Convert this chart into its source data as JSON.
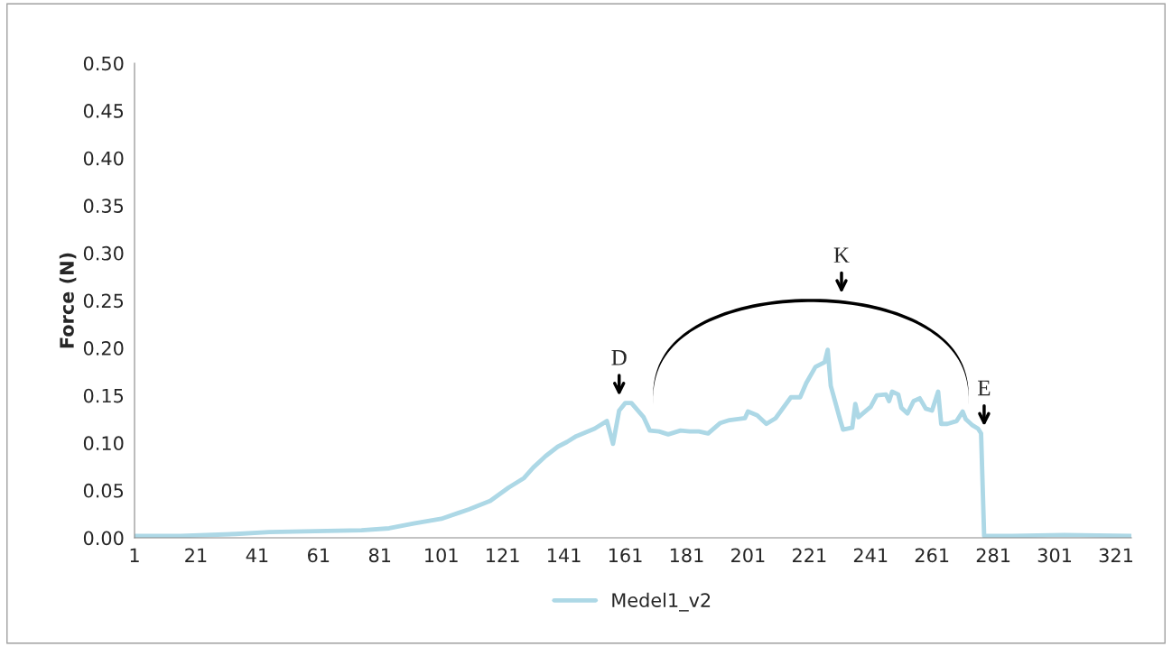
{
  "chart_data": {
    "type": "line",
    "ylabel": "Force (N)",
    "xlim": [
      1,
      326
    ],
    "xticks": [
      1,
      21,
      41,
      61,
      81,
      101,
      121,
      141,
      161,
      181,
      201,
      221,
      241,
      261,
      281,
      301,
      321
    ],
    "ylim": [
      0,
      0.5
    ],
    "yticks": [
      {
        "value": 0,
        "label": "0.00"
      },
      {
        "value": 0.05,
        "label": "0.05"
      },
      {
        "value": 0.1,
        "label": "0.10"
      },
      {
        "value": 0.15,
        "label": "0.15"
      },
      {
        "value": 0.2,
        "label": "0.20"
      },
      {
        "value": 0.25,
        "label": "0.25"
      },
      {
        "value": 0.3,
        "label": "0.30"
      },
      {
        "value": 0.35,
        "label": "0.35"
      },
      {
        "value": 0.4,
        "label": "0.40"
      },
      {
        "value": 0.45,
        "label": "0.45"
      },
      {
        "value": 0.5,
        "label": "0.50"
      }
    ],
    "grid": false,
    "legend": "bottom",
    "marker": "none",
    "line_style": "solid",
    "series": [
      {
        "name": "Medel1_v2",
        "color": "#add8e6",
        "x": [
          1,
          16,
          34,
          45,
          60,
          75,
          84,
          92,
          101,
          110,
          117,
          123,
          128,
          131,
          135,
          139,
          142,
          145,
          151,
          155,
          157,
          159,
          161,
          163,
          167,
          169,
          172,
          175,
          179,
          182,
          185,
          188,
          192,
          195,
          200,
          201,
          204,
          207,
          210,
          215,
          218,
          220,
          223,
          226,
          227,
          228,
          231,
          232,
          235,
          236,
          237,
          241,
          243,
          246,
          247,
          248,
          250,
          251,
          253,
          255,
          257,
          259,
          261,
          263,
          264,
          266,
          269,
          271,
          272,
          274,
          276,
          277,
          278,
          287,
          304,
          326
        ],
        "values": [
          0.002,
          0.002,
          0.004,
          0.006,
          0.007,
          0.008,
          0.01,
          0.015,
          0.02,
          0.03,
          0.039,
          0.053,
          0.063,
          0.074,
          0.086,
          0.096,
          0.101,
          0.107,
          0.115,
          0.123,
          0.099,
          0.134,
          0.142,
          0.142,
          0.127,
          0.113,
          0.112,
          0.109,
          0.113,
          0.112,
          0.112,
          0.11,
          0.121,
          0.124,
          0.126,
          0.133,
          0.129,
          0.12,
          0.126,
          0.148,
          0.148,
          0.163,
          0.18,
          0.185,
          0.198,
          0.16,
          0.125,
          0.114,
          0.116,
          0.141,
          0.127,
          0.138,
          0.15,
          0.151,
          0.144,
          0.154,
          0.151,
          0.137,
          0.131,
          0.144,
          0.147,
          0.136,
          0.134,
          0.154,
          0.12,
          0.12,
          0.123,
          0.133,
          0.125,
          0.119,
          0.115,
          0.11,
          0.002,
          0.002,
          0.003,
          0.002
        ]
      }
    ],
    "annotations": [
      {
        "text": "D",
        "x": 159,
        "y": 0.142
      },
      "K",
      {
        "text": "E",
        "x": 278,
        "y": 0.11
      }
    ]
  }
}
